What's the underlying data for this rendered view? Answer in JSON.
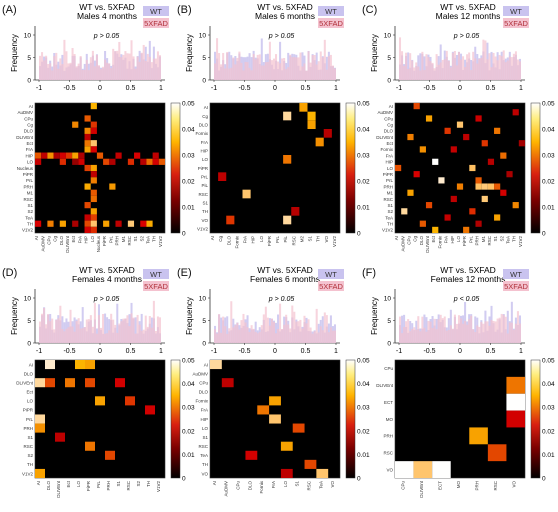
{
  "figure": {
    "x_ticks": [
      "-1",
      "-0.5",
      "0",
      "0.5",
      "1"
    ],
    "colorbar_ticks": [
      "0.05",
      "0.04",
      "0.03",
      "0.02",
      "0.01",
      "0"
    ],
    "legend": {
      "wt": "WT",
      "fad": "5XFAD"
    },
    "colors": {
      "wt": "#c9c3ef",
      "fad": "#f4c2cf",
      "heat_low": "#000000",
      "heat_mid": "#cc1a1a",
      "heat_high": "#ffffff"
    }
  },
  "chart_data": [
    {
      "type": "heatmap",
      "panel_letter": "(A)",
      "title_line1": "WT vs. 5XFAD",
      "title_line2": "Males 4 months",
      "pvalue": "p > 0.05",
      "ylabel": "Frequency",
      "hist_yticks": [
        "0",
        "5",
        "10"
      ],
      "hist_ylim": [
        0,
        12
      ],
      "colorbar_range": [
        0,
        0.05
      ],
      "row_labels": [
        "AI",
        "AuDMV",
        "CPu",
        "Cg",
        "DLO",
        "DLIVEnt",
        "Ect",
        "FrA",
        "HIP",
        "LO",
        "Nucleus",
        "PiPR",
        "PrL",
        "PRH",
        "M1",
        "RSC",
        "S1",
        "S2",
        "TeA",
        "TH",
        "V1V2"
      ],
      "col_labels": [
        "AI",
        "AuDMV",
        "CPu",
        "Cg",
        "DLO",
        "DLIVEnt",
        "Ect",
        "FrA",
        "HIP",
        "LO",
        "Nucleus",
        "PiPR",
        "PrL",
        "PRH",
        "M1",
        "RSC",
        "S1",
        "S2",
        "TeA",
        "TH",
        "V1V2"
      ],
      "nonzero_cells": [
        [
          0,
          9,
          0.032
        ],
        [
          2,
          8,
          0.022
        ],
        [
          3,
          9,
          0.018
        ],
        [
          4,
          8,
          0.027
        ],
        [
          4,
          9,
          0.015
        ],
        [
          5,
          8,
          0.012
        ],
        [
          6,
          8,
          0.025
        ],
        [
          6,
          9,
          0.035
        ],
        [
          7,
          8,
          0.03
        ],
        [
          7,
          9,
          0.016
        ],
        [
          8,
          0,
          0.022
        ],
        [
          8,
          1,
          0.012
        ],
        [
          8,
          2,
          0.028
        ],
        [
          8,
          3,
          0.009
        ],
        [
          8,
          4,
          0.015
        ],
        [
          8,
          5,
          0.018
        ],
        [
          8,
          6,
          0.03
        ],
        [
          8,
          7,
          0.01
        ],
        [
          8,
          10,
          0.022
        ],
        [
          8,
          13,
          0.013
        ],
        [
          8,
          16,
          0.016
        ],
        [
          8,
          19,
          0.012
        ],
        [
          9,
          0,
          0.013
        ],
        [
          9,
          4,
          0.017
        ],
        [
          9,
          6,
          0.006
        ],
        [
          9,
          7,
          0.015
        ],
        [
          9,
          11,
          0.02
        ],
        [
          9,
          12,
          0.01
        ],
        [
          9,
          15,
          0.017
        ],
        [
          9,
          17,
          0.011
        ],
        [
          9,
          18,
          0.024
        ],
        [
          9,
          19,
          0.015
        ],
        [
          9,
          20,
          0.022
        ],
        [
          10,
          8,
          0.019
        ],
        [
          10,
          9,
          0.03
        ],
        [
          11,
          9,
          0.012
        ],
        [
          12,
          9,
          0.026
        ],
        [
          13,
          8,
          0.031
        ],
        [
          14,
          9,
          0.022
        ],
        [
          15,
          9,
          0.024
        ],
        [
          16,
          8,
          0.02
        ],
        [
          17,
          9,
          0.03
        ],
        [
          18,
          8,
          0.013
        ],
        [
          18,
          9,
          0.019
        ],
        [
          19,
          0,
          0.016
        ],
        [
          19,
          2,
          0.026
        ],
        [
          19,
          4,
          0.03
        ],
        [
          19,
          6,
          0.009
        ],
        [
          19,
          8,
          0.02
        ],
        [
          19,
          9,
          0.035
        ],
        [
          19,
          11,
          0.03
        ],
        [
          19,
          13,
          0.012
        ],
        [
          19,
          15,
          0.036
        ],
        [
          19,
          17,
          0.016
        ],
        [
          19,
          18,
          0.031
        ],
        [
          20,
          8,
          0.015
        ],
        [
          20,
          9,
          0.017
        ],
        [
          3,
          6,
          0.027
        ],
        [
          13,
          12,
          0.029
        ]
      ]
    },
    {
      "type": "heatmap",
      "panel_letter": "(B)",
      "title_line1": "WT vs. 5XFAD",
      "title_line2": "Males 6 months",
      "pvalue": "p > 0.05",
      "ylabel": "Frequency",
      "hist_yticks": [
        "0",
        "5",
        "10"
      ],
      "hist_ylim": [
        0,
        12
      ],
      "colorbar_range": [
        0,
        0.05
      ],
      "row_labels": [
        "AI",
        "Cg",
        "DLO",
        "Fornix",
        "FrA",
        "HIP",
        "LO",
        "PiPR",
        "PrL",
        "PiL",
        "RSC",
        "S1",
        "TH",
        "VO",
        "V1V2"
      ],
      "col_labels": [
        "AI",
        "Cg",
        "DLO",
        "Fornix",
        "FrA",
        "HIP",
        "LO",
        "PiPR",
        "PrL",
        "PiL",
        "RSC",
        "M2",
        "S1",
        "TH",
        "VO",
        "V1V2"
      ],
      "nonzero_cells": [
        [
          1,
          9,
          0.04
        ],
        [
          1,
          12,
          0.032
        ],
        [
          2,
          12,
          0.03
        ],
        [
          3,
          14,
          0.011
        ],
        [
          4,
          13,
          0.028
        ],
        [
          6,
          9,
          0.025
        ],
        [
          8,
          1,
          0.012
        ],
        [
          10,
          4,
          0.035
        ],
        [
          12,
          10,
          0.011
        ],
        [
          13,
          2,
          0.018
        ],
        [
          13,
          9,
          0.04
        ],
        [
          0,
          11,
          0.03
        ]
      ]
    },
    {
      "type": "heatmap",
      "panel_letter": "(C)",
      "title_line1": "WT vs. 5XFAD",
      "title_line2": "Males 12 months",
      "pvalue": "p > 0.05",
      "ylabel": "Frequency",
      "hist_yticks": [
        "0",
        "5",
        "10"
      ],
      "hist_ylim": [
        0,
        12
      ],
      "colorbar_range": [
        0,
        0.05
      ],
      "row_labels": [
        "AI",
        "AuDMV",
        "CPu",
        "Cg",
        "DLO",
        "DLIVEnt",
        "Ect",
        "Fornix",
        "FrA",
        "HIP",
        "LO",
        "PiPR",
        "PrL",
        "PRH",
        "M1",
        "RSC",
        "S1",
        "S2",
        "TeA",
        "TH",
        "V1V2"
      ],
      "col_labels": [
        "AI",
        "AuDMV",
        "CPu",
        "Cg",
        "DLO",
        "DLIVEnt",
        "Ect",
        "Fornix",
        "FrA",
        "HIP",
        "LO",
        "PiPR",
        "PrL",
        "PRH",
        "M1",
        "RSC",
        "S1",
        "S2",
        "TeA",
        "TH",
        "V1V2"
      ],
      "nonzero_cells": [
        [
          0,
          3,
          0.02
        ],
        [
          1,
          19,
          0.012
        ],
        [
          2,
          5,
          0.03
        ],
        [
          2,
          13,
          0.014
        ],
        [
          3,
          10,
          0.035
        ],
        [
          4,
          8,
          0.018
        ],
        [
          4,
          16,
          0.025
        ],
        [
          5,
          2,
          0.026
        ],
        [
          5,
          11,
          0.012
        ],
        [
          6,
          14,
          0.018
        ],
        [
          6,
          20,
          0.008
        ],
        [
          7,
          4,
          0.028
        ],
        [
          7,
          9,
          0.013
        ],
        [
          8,
          17,
          0.024
        ],
        [
          9,
          6,
          0.05
        ],
        [
          9,
          15,
          0.011
        ],
        [
          10,
          0,
          0.021
        ],
        [
          10,
          12,
          0.034
        ],
        [
          11,
          3,
          0.016
        ],
        [
          11,
          18,
          0.009
        ],
        [
          12,
          7,
          0.045
        ],
        [
          12,
          13,
          0.022
        ],
        [
          13,
          10,
          0.026
        ],
        [
          14,
          2,
          0.03
        ],
        [
          14,
          17,
          0.015
        ],
        [
          15,
          9,
          0.012
        ],
        [
          15,
          14,
          0.036
        ],
        [
          16,
          5,
          0.02
        ],
        [
          16,
          19,
          0.027
        ],
        [
          17,
          1,
          0.04
        ],
        [
          17,
          12,
          0.017
        ],
        [
          18,
          8,
          0.013
        ],
        [
          18,
          16,
          0.03
        ],
        [
          19,
          4,
          0.022
        ],
        [
          19,
          13,
          0.01
        ],
        [
          20,
          6,
          0.032
        ],
        [
          20,
          11,
          0.025
        ],
        [
          13,
          13,
          0.034
        ],
        [
          13,
          14,
          0.036
        ],
        [
          13,
          15,
          0.034
        ],
        [
          13,
          16,
          0.022
        ]
      ]
    },
    {
      "type": "heatmap",
      "panel_letter": "(D)",
      "title_line1": "WT vs. 5XFAD",
      "title_line2": "Females 4 months",
      "pvalue": "p > 0.05",
      "ylabel": "Frequency",
      "hist_yticks": [
        "0",
        "5",
        "10"
      ],
      "hist_ylim": [
        0,
        12
      ],
      "colorbar_range": [
        0,
        0.05
      ],
      "row_labels": [
        "AI",
        "DLO",
        "DLIVEnt",
        "Ect",
        "LO",
        "PiPR",
        "PrL",
        "PRH",
        "S1",
        "RSC",
        "S2",
        "TH",
        "V1V2"
      ],
      "col_labels": [
        "AI",
        "DLO",
        "DLIVEnt",
        "Ect",
        "LO",
        "PiPR",
        "PrL",
        "PRH",
        "S1",
        "RSC",
        "S2",
        "TH",
        "V1V2"
      ],
      "nonzero_cells": [
        [
          0,
          1,
          0.045
        ],
        [
          0,
          4,
          0.032
        ],
        [
          0,
          5,
          0.03
        ],
        [
          2,
          0,
          0.04
        ],
        [
          2,
          1,
          0.02
        ],
        [
          2,
          3,
          0.025
        ],
        [
          2,
          5,
          0.02
        ],
        [
          2,
          8,
          0.015
        ],
        [
          4,
          6,
          0.03
        ],
        [
          4,
          9,
          0.018
        ],
        [
          5,
          11,
          0.015
        ],
        [
          6,
          0,
          0.04
        ],
        [
          7,
          0,
          0.028
        ],
        [
          8,
          2,
          0.012
        ],
        [
          9,
          5,
          0.025
        ],
        [
          10,
          7,
          0.02
        ],
        [
          12,
          0,
          0.03
        ]
      ]
    },
    {
      "type": "heatmap",
      "panel_letter": "(E)",
      "title_line1": "WT vs. 5XFAD",
      "title_line2": "Females 6 months",
      "pvalue": "p > 0.05",
      "ylabel": "Frequency",
      "hist_yticks": [
        "0",
        "5",
        "10"
      ],
      "hist_ylim": [
        0,
        12
      ],
      "colorbar_range": [
        0,
        0.05
      ],
      "row_labels": [
        "AI",
        "AuDMV",
        "CPu",
        "DLO",
        "Fornix",
        "FrA",
        "HIP",
        "LO",
        "S1",
        "RSC",
        "TeA",
        "TH",
        "VO"
      ],
      "col_labels": [
        "AI",
        "AuDMV",
        "CPu",
        "DLO",
        "Fornix",
        "FrA",
        "LO",
        "S1",
        "RSC",
        "TeA",
        "VO"
      ],
      "nonzero_cells": [
        [
          0,
          0,
          0.04
        ],
        [
          2,
          1,
          0.012
        ],
        [
          4,
          5,
          0.03
        ],
        [
          5,
          4,
          0.025
        ],
        [
          6,
          5,
          0.035
        ],
        [
          7,
          7,
          0.02
        ],
        [
          9,
          6,
          0.03
        ],
        [
          10,
          3,
          0.015
        ],
        [
          11,
          8,
          0.02
        ],
        [
          12,
          6,
          0.012
        ],
        [
          12,
          9,
          0.035
        ]
      ]
    },
    {
      "type": "heatmap",
      "panel_letter": "(F)",
      "title_line1": "WT vs. 5XFAD",
      "title_line2": "Females 12 months",
      "pvalue": "p < 0.05",
      "ylabel": "Frequency",
      "hist_yticks": [
        "0",
        "5",
        "10"
      ],
      "hist_ylim": [
        0,
        12
      ],
      "colorbar_range": [
        0,
        0.05
      ],
      "row_labels": [
        "CPu",
        "DLIVEnt",
        "ECT",
        "MO",
        "PRH",
        "RSC",
        "VO"
      ],
      "col_labels": [
        "CPu",
        "DLIVEnt",
        "ECT",
        "MO",
        "PRH",
        "RSC",
        "VO"
      ],
      "nonzero_cells": [
        [
          1,
          6,
          0.025
        ],
        [
          2,
          6,
          0.05
        ],
        [
          3,
          6,
          0.015
        ],
        [
          4,
          4,
          0.03
        ],
        [
          5,
          5,
          0.02
        ],
        [
          6,
          0,
          0.05
        ],
        [
          6,
          1,
          0.035
        ],
        [
          6,
          2,
          0.05
        ]
      ]
    }
  ]
}
